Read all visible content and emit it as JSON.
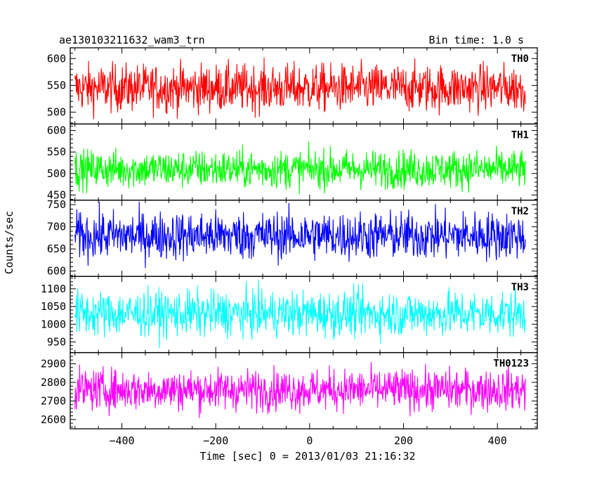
{
  "header": {
    "title": "ae130103211632_wam3_trn",
    "bin_time": "Bin time: 1.0 s"
  },
  "axes": {
    "xlabel": "Time [sec] 0 = 2013/01/03 21:16:32",
    "ylabel": "Counts/sec",
    "x_ticks": [
      -400,
      -200,
      0,
      200,
      400
    ],
    "xlim": [
      -510,
      485
    ]
  },
  "chart_data": {
    "type": "line",
    "x_range": [
      -500,
      460
    ],
    "bin_time_s": 1.0,
    "series": [
      {
        "name": "TH0",
        "color": "#ff0000",
        "mean": 545,
        "spread": 22,
        "ylim": [
          478,
          620
        ],
        "yticks": [
          500,
          550,
          600
        ]
      },
      {
        "name": "TH1",
        "color": "#00ff00",
        "mean": 510,
        "spread": 22,
        "ylim": [
          438,
          615
        ],
        "yticks": [
          450,
          500,
          550,
          600
        ]
      },
      {
        "name": "TH2",
        "color": "#0000ff",
        "mean": 680,
        "spread": 27,
        "ylim": [
          588,
          760
        ],
        "yticks": [
          600,
          650,
          700,
          750
        ]
      },
      {
        "name": "TH3",
        "color": "#00ffff",
        "mean": 1030,
        "spread": 32,
        "ylim": [
          920,
          1135
        ],
        "yticks": [
          950,
          1000,
          1050,
          1100
        ]
      },
      {
        "name": "TH0123",
        "color": "#ff00ff",
        "mean": 2760,
        "spread": 55,
        "ylim": [
          2550,
          2960
        ],
        "yticks": [
          2600,
          2700,
          2800,
          2900
        ]
      }
    ]
  }
}
